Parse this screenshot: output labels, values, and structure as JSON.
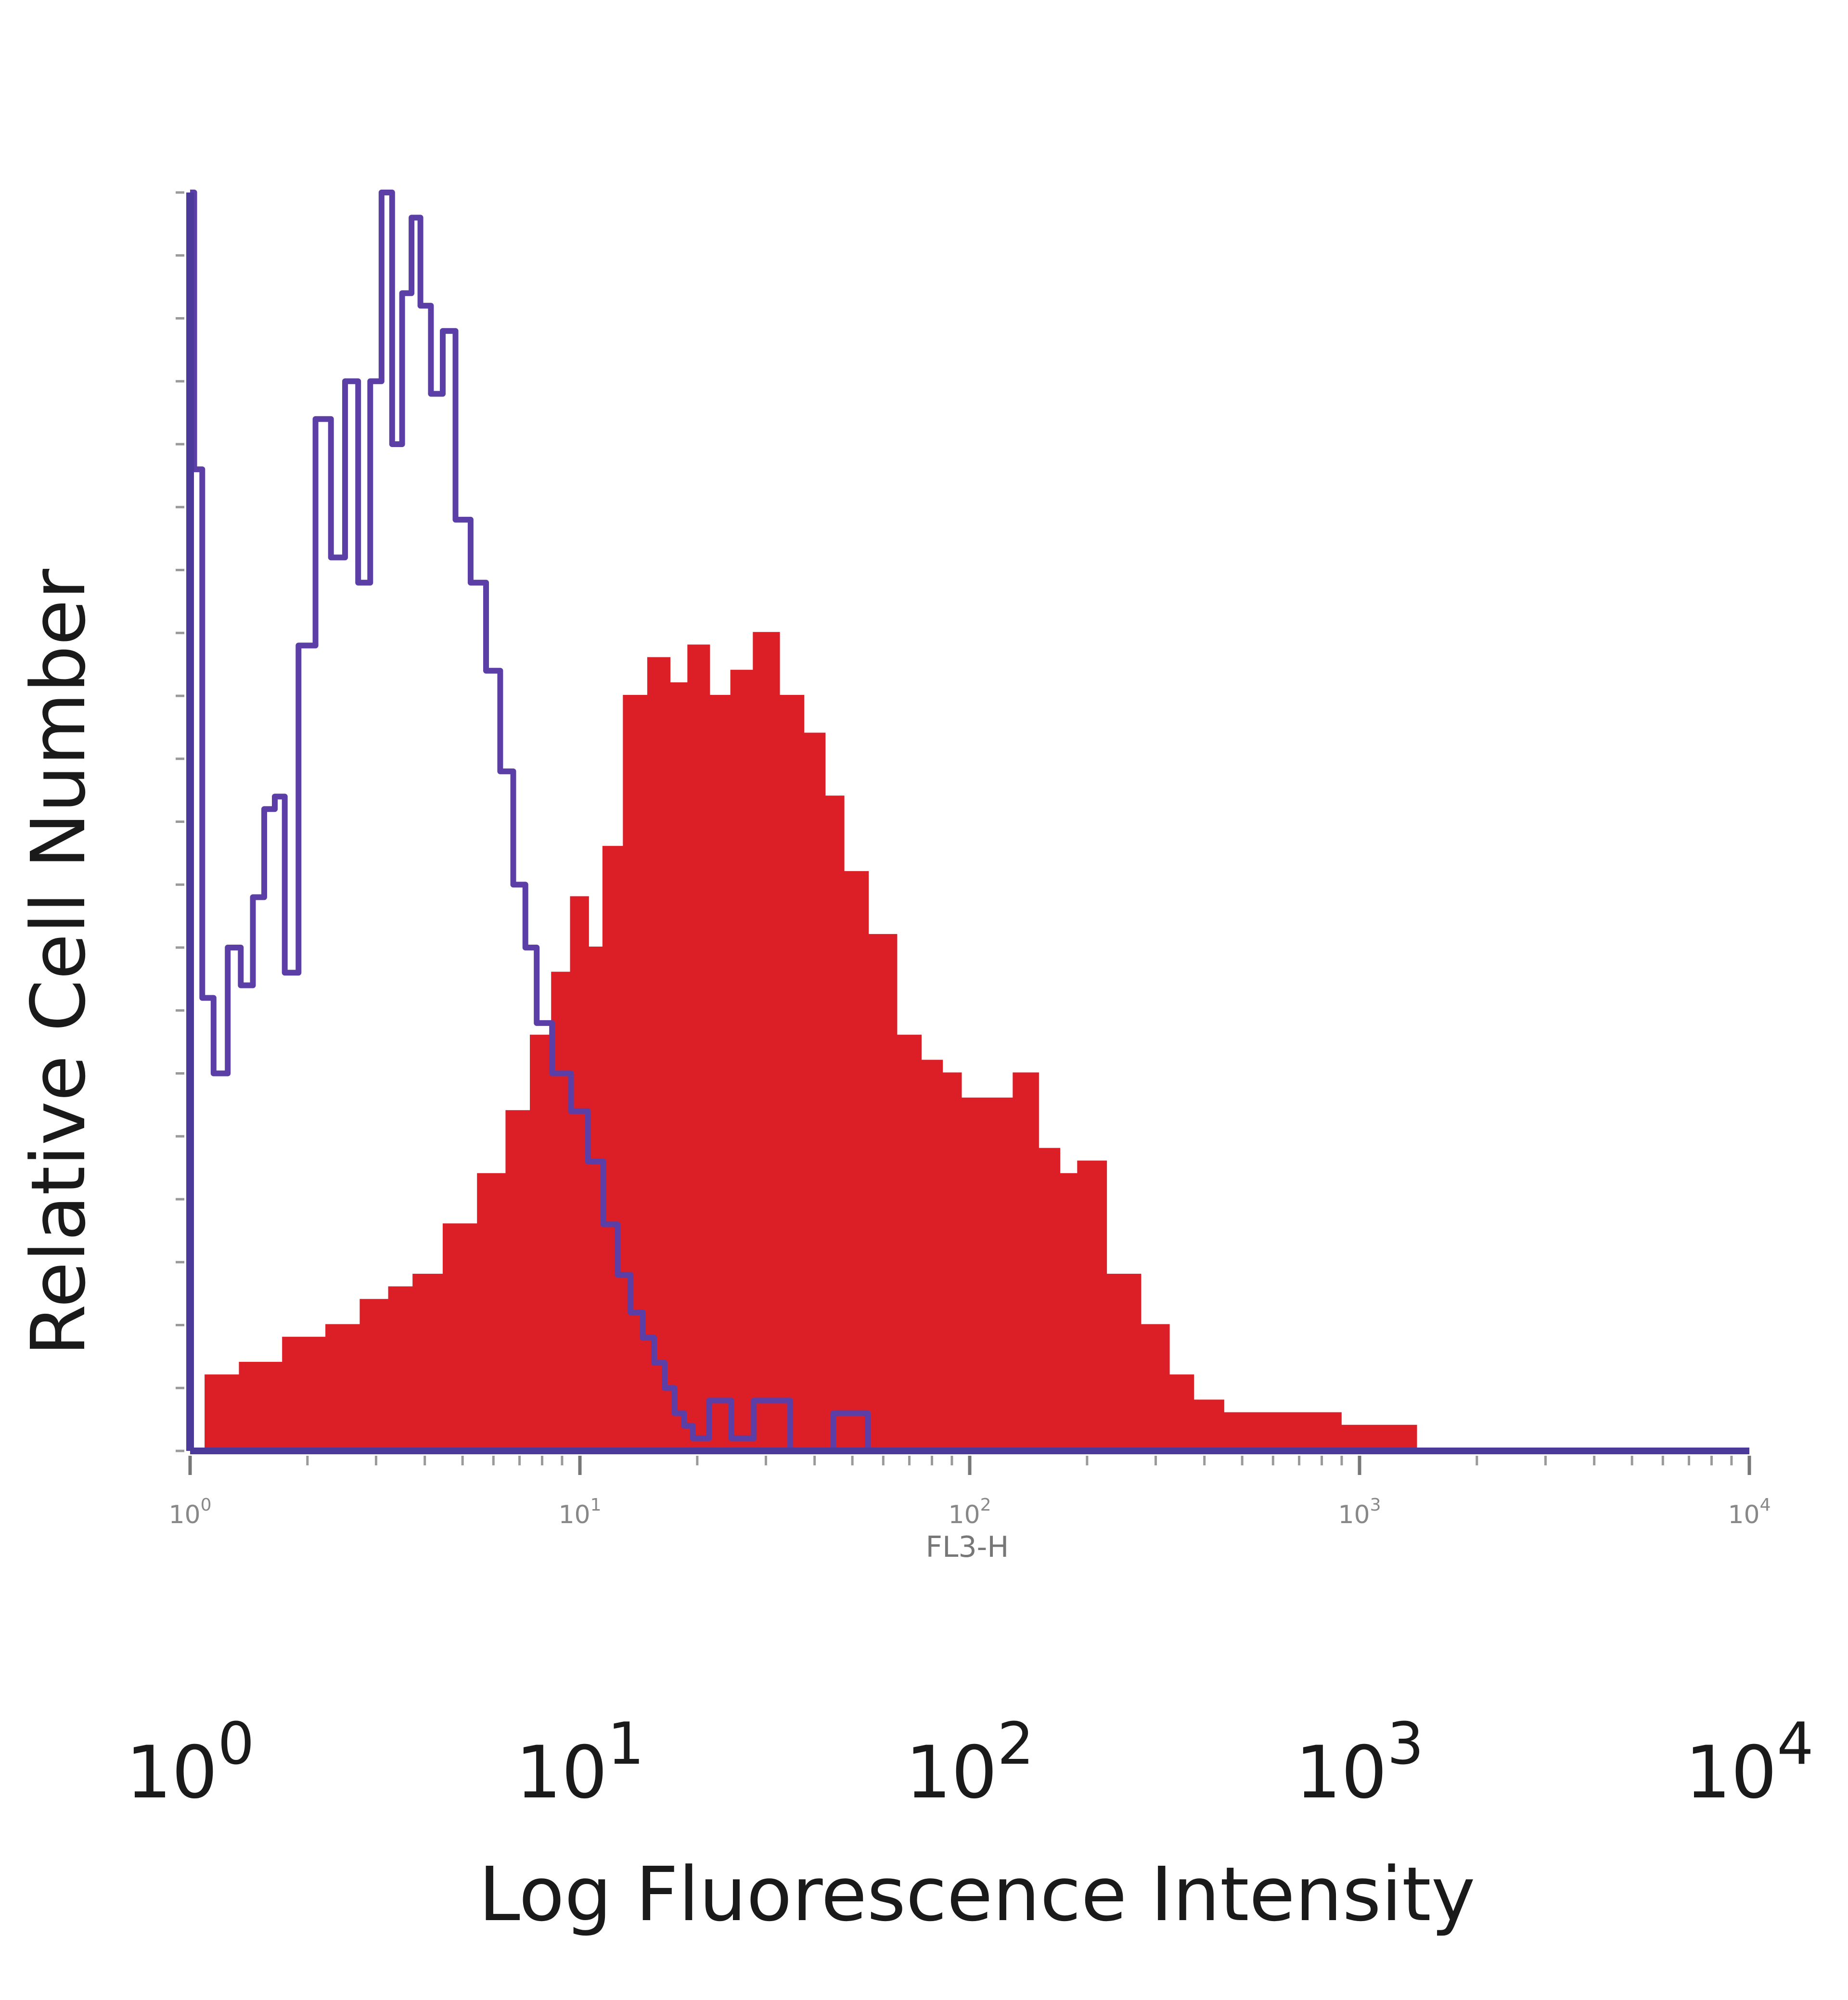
{
  "chart_data": {
    "type": "area",
    "title": "",
    "xlabel": "Log Fluorescence Intensity",
    "ylabel": "Relative Cell Number",
    "inner_xlabel": "FL3-H",
    "xscale": "log",
    "xlim": [
      1,
      10000
    ],
    "ylim": [
      0,
      100
    ],
    "grid": false,
    "legend": "none",
    "x_tick_labels": [
      {
        "base": "10",
        "exp": "0"
      },
      {
        "base": "10",
        "exp": "1"
      },
      {
        "base": "10",
        "exp": "2"
      },
      {
        "base": "10",
        "exp": "3"
      },
      {
        "base": "10",
        "exp": "4"
      }
    ],
    "x_tick_values": [
      1,
      10,
      100,
      1000,
      10000
    ],
    "series": [
      {
        "style": "filled",
        "color": "#dc1f26",
        "x": [
          1.0,
          1.2,
          1.5,
          2.0,
          2.5,
          3.0,
          3.5,
          4.0,
          5.0,
          6.0,
          7.0,
          8.0,
          9.0,
          10.0,
          11.0,
          12.0,
          14.0,
          16.0,
          18.0,
          20.0,
          23.0,
          26.0,
          30.0,
          35.0,
          40.0,
          45.0,
          50.0,
          60.0,
          70.0,
          80.0,
          90.0,
          100.0,
          120.0,
          140.0,
          160.0,
          180.0,
          200.0,
          250.0,
          300.0,
          350.0,
          400.0,
          500.0,
          600.0,
          800.0,
          1000.0,
          1300.0,
          1500.0
        ],
        "y": [
          0,
          6,
          7,
          9,
          10,
          12,
          13,
          14,
          18,
          22,
          27,
          33,
          38,
          44,
          40,
          48,
          60,
          63,
          61,
          64,
          60,
          62,
          65,
          60,
          57,
          52,
          46,
          41,
          33,
          31,
          30,
          28,
          28,
          30,
          24,
          22,
          23,
          14,
          10,
          6,
          4,
          3,
          3,
          3,
          2,
          2,
          0
        ]
      },
      {
        "style": "line",
        "color": "#5b3fa6",
        "x": [
          1.0,
          1.05,
          1.1,
          1.2,
          1.3,
          1.4,
          1.5,
          1.6,
          1.7,
          1.8,
          2.0,
          2.2,
          2.4,
          2.6,
          2.8,
          3.0,
          3.2,
          3.4,
          3.6,
          3.8,
          4.0,
          4.3,
          4.6,
          5.0,
          5.5,
          6.0,
          6.5,
          7.0,
          7.5,
          8.0,
          9.0,
          10.0,
          11.0,
          12.0,
          13.0,
          14.0,
          15.0,
          16.0,
          17.0,
          18.0,
          19.0,
          20.0,
          23.0,
          26.0,
          30.0,
          40.0,
          50.0,
          60.0,
          70.0,
          100.0
        ],
        "y": [
          100,
          78,
          36,
          30,
          40,
          37,
          44,
          51,
          52,
          38,
          64,
          82,
          71,
          85,
          69,
          85,
          100,
          80,
          92,
          98,
          91,
          84,
          89,
          74,
          69,
          62,
          54,
          45,
          40,
          34,
          30,
          27,
          23,
          18,
          14,
          11,
          9,
          7,
          5,
          3,
          2,
          1,
          4,
          1,
          4,
          0,
          3,
          0,
          0,
          0
        ]
      }
    ]
  }
}
